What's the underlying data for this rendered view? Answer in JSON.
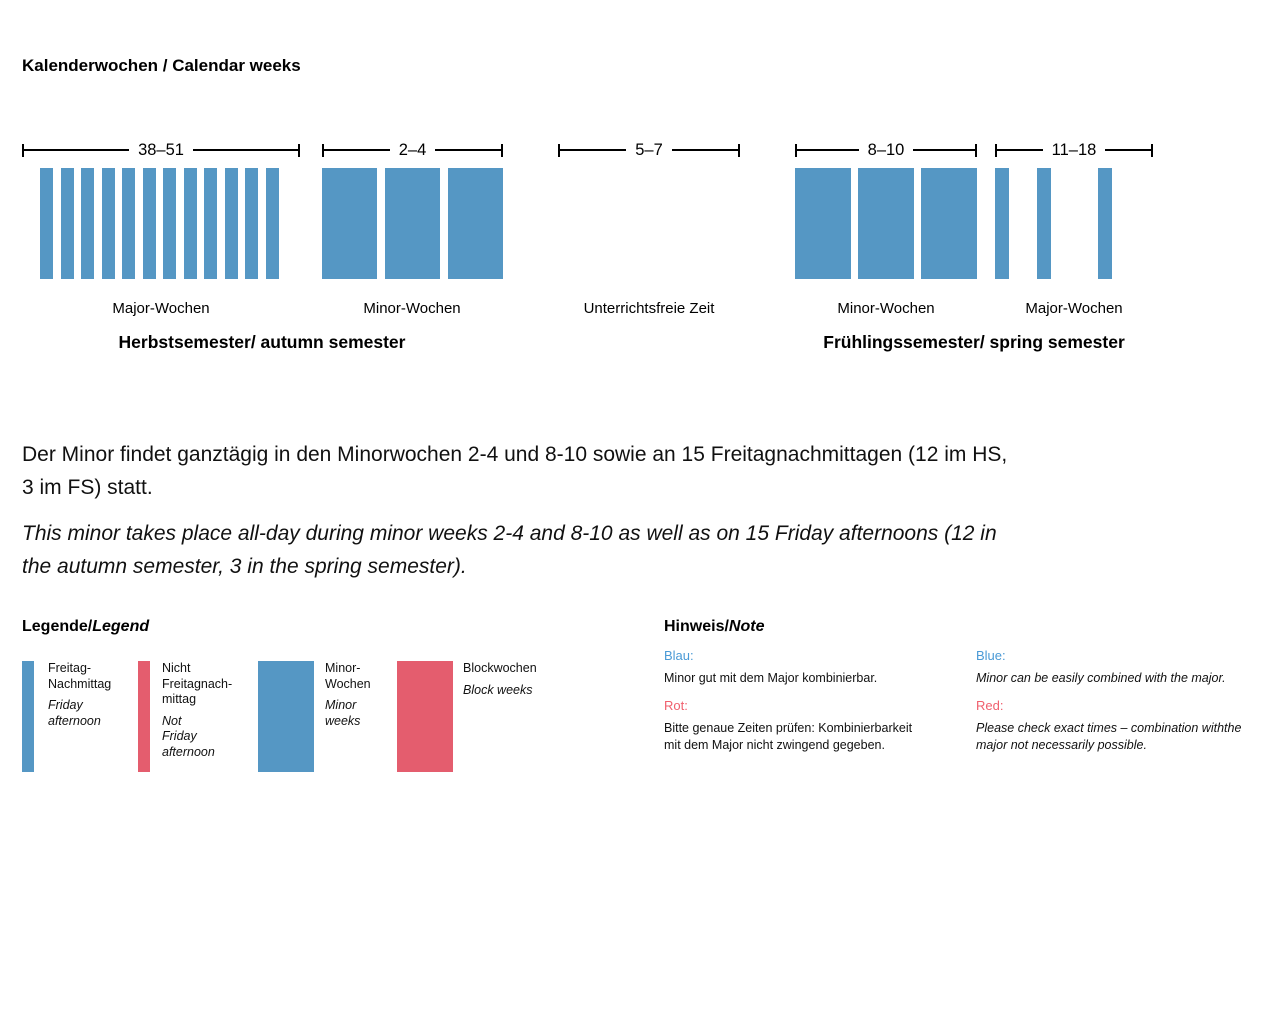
{
  "title": "Kalenderwochen / Calendar weeks",
  "colors": {
    "blue": "#5597c4",
    "red": "#e45d6e",
    "note-blue": "#4a9ad6",
    "note-red": "#f0606e"
  },
  "timeline": {
    "groups": [
      {
        "range": "38–51",
        "label": "Major-Wochen",
        "bar_style": "thin",
        "bar_count": 12
      },
      {
        "range": "2–4",
        "label": "Minor-Wochen",
        "bar_style": "wide",
        "bar_count": 3
      },
      {
        "range": "5–7",
        "label": "Unterrichtsfreie Zeit",
        "bar_style": "none",
        "bar_count": 0
      },
      {
        "range": "8–10",
        "label": "Minor-Wochen",
        "bar_style": "wide",
        "bar_count": 3
      },
      {
        "range": "11–18",
        "label": "Major-Wochen",
        "bar_style": "thin-sparse",
        "bar_count": 3
      }
    ],
    "semesters": [
      {
        "label": "Herbstsemester/ autumn semester"
      },
      {
        "label": "Frühlingssemester/ spring semester"
      }
    ]
  },
  "paragraphs": {
    "de": "Der Minor findet ganztägig in den Minorwochen 2-4 und 8-10 sowie an 15 Freitagnachmittagen (12 im HS,\n3 im FS) statt.",
    "en": "This minor takes place all-day during minor weeks 2-4 and 8-10 as well as on 15 Friday afternoons (12 in\nthe autumn semester, 3 in the spring semester)."
  },
  "legend": {
    "header_de": "Legende/",
    "header_en": "Legend",
    "items": [
      {
        "swatch": "thin-blue",
        "label_de": "Freitag-\nNachmittag",
        "label_en": "Friday\nafternoon"
      },
      {
        "swatch": "thin-red",
        "label_de": "Nicht\nFreitagnach-\nmittag",
        "label_en": "Not\nFriday\nafternoon"
      },
      {
        "swatch": "wide-blue",
        "label_de": "Minor-\nWochen",
        "label_en": "Minor\nweeks"
      },
      {
        "swatch": "wide-red",
        "label_de": "Blockwochen",
        "label_en": "Block weeks"
      }
    ]
  },
  "note": {
    "header_de": "Hinweis/",
    "header_en": "Note",
    "de": [
      {
        "term": "Blau:",
        "text": "Minor gut mit dem Major kombinierbar."
      },
      {
        "term": "Rot:",
        "text": "Bitte genaue Zeiten prüfen: Kombinierbarkeit\nmit dem Major nicht zwingend gegeben."
      }
    ],
    "en": [
      {
        "term": "Blue:",
        "text": "Minor can be easily combined with the major."
      },
      {
        "term": "Red:",
        "text": "Please check exact times – combination withthe\nmajor not necessarily possible."
      }
    ]
  }
}
